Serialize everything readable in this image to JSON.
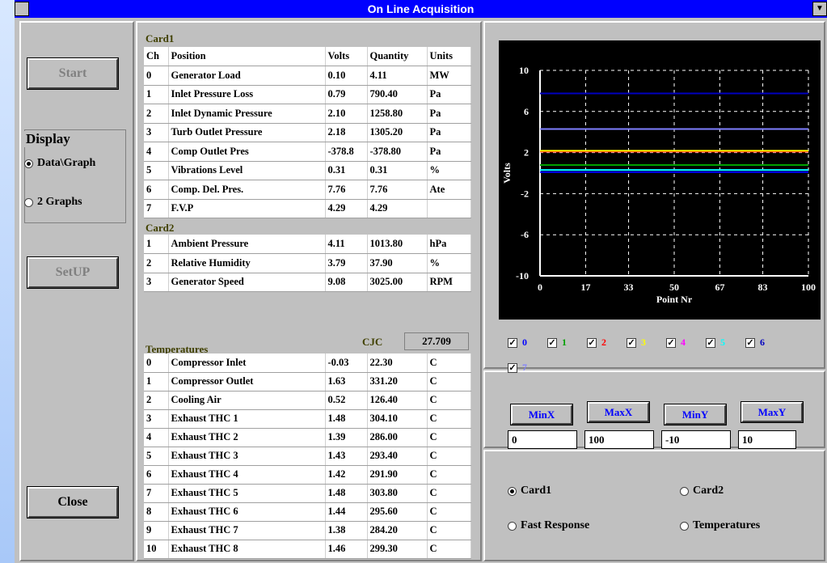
{
  "window": {
    "title": "On Line Acquisition"
  },
  "left": {
    "start": "Start",
    "display": {
      "title": "Display",
      "options": [
        "Data\\Graph",
        "2 Graphs"
      ],
      "selected": 0
    },
    "setup": "SetUP",
    "close": "Close"
  },
  "card1": {
    "title": "Card1",
    "columns": [
      "Ch",
      "Position",
      "Volts",
      "Quantity",
      "Units"
    ],
    "rows": [
      [
        "0",
        "Generator Load",
        "0.10",
        "4.11",
        "MW"
      ],
      [
        "1",
        "Inlet Pressure Loss",
        "0.79",
        "790.40",
        "Pa"
      ],
      [
        "2",
        "Inlet Dynamic Pressure",
        "2.10",
        "1258.80",
        "Pa"
      ],
      [
        "3",
        "Turb  Outlet Pressure",
        "2.18",
        "1305.20",
        "Pa"
      ],
      [
        "4",
        "Comp  Outlet Pres",
        "-378.8",
        "-378.80",
        "Pa"
      ],
      [
        "5",
        "Vibrations Level",
        "0.31",
        "0.31",
        "%"
      ],
      [
        "6",
        "Comp. Del. Pres.",
        "7.76",
        "7.76",
        "Ate"
      ],
      [
        "7",
        "F.V.P",
        "4.29",
        "4.29",
        ""
      ]
    ]
  },
  "card2": {
    "title": "Card2",
    "rows": [
      [
        "1",
        "Ambient Pressure",
        "4.11",
        "1013.80",
        "hPa"
      ],
      [
        "2",
        "Relative Humidity",
        "3.79",
        "37.90",
        "%"
      ],
      [
        "3",
        "Generator Speed",
        "9.08",
        "3025.00",
        "RPM"
      ]
    ]
  },
  "temperatures": {
    "title": "Temperatures",
    "cjc_label": "CJC",
    "cjc": "27.709",
    "rows": [
      [
        "0",
        "Compressor Inlet",
        "-0.03",
        "22.30",
        "C"
      ],
      [
        "1",
        "Compressor Outlet",
        "1.63",
        "331.20",
        "C"
      ],
      [
        "2",
        "Cooling Air",
        "0.52",
        "126.40",
        "C"
      ],
      [
        "3",
        "Exhaust THC 1",
        "1.48",
        "304.10",
        "C"
      ],
      [
        "4",
        "Exhaust THC 2",
        "1.39",
        "286.00",
        "C"
      ],
      [
        "5",
        "Exhaust THC 3",
        "1.43",
        "293.40",
        "C"
      ],
      [
        "6",
        "Exhaust THC 4",
        "1.42",
        "291.90",
        "C"
      ],
      [
        "7",
        "Exhaust THC 5",
        "1.48",
        "303.80",
        "C"
      ],
      [
        "8",
        "Exhaust THC 6",
        "1.44",
        "295.60",
        "C"
      ],
      [
        "9",
        "Exhaust THC 7",
        "1.38",
        "284.20",
        "C"
      ],
      [
        "10",
        "Exhaust THC 8",
        "1.46",
        "299.30",
        "C"
      ]
    ]
  },
  "graph": {
    "ylabel": "Volts",
    "xlabel": "Point Nr",
    "xlim": [
      0,
      100
    ],
    "ylim": [
      -10,
      10
    ],
    "xticks": [
      0,
      17,
      33,
      50,
      67,
      83,
      100
    ],
    "yticks": [
      10,
      6,
      2,
      -2,
      -6,
      -10
    ],
    "channels": [
      {
        "label": "0",
        "color": "#0000ff",
        "checked": true
      },
      {
        "label": "1",
        "color": "#00a000",
        "checked": true
      },
      {
        "label": "2",
        "color": "#ff0000",
        "checked": true
      },
      {
        "label": "3",
        "color": "#ffff00",
        "checked": true
      },
      {
        "label": "4",
        "color": "#ff00ff",
        "checked": true
      },
      {
        "label": "5",
        "color": "#00ffff",
        "checked": true
      },
      {
        "label": "6",
        "color": "#0000c0",
        "checked": true
      },
      {
        "label": "7",
        "color": "#8080ff",
        "checked": true
      }
    ]
  },
  "limits": [
    {
      "label": "MinX",
      "value": "0"
    },
    {
      "label": "MaxX",
      "value": "100"
    },
    {
      "label": "MinY",
      "value": "-10"
    },
    {
      "label": "MaxY",
      "value": "10"
    }
  ],
  "source": {
    "options": [
      "Card1",
      "Card2",
      "Fast Response",
      "Temperatures"
    ],
    "selected": 0
  }
}
